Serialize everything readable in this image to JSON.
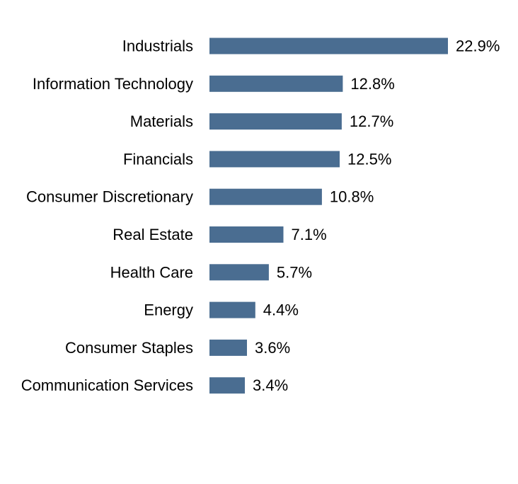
{
  "chart_data": {
    "type": "bar",
    "orientation": "horizontal",
    "categories": [
      "Industrials",
      "Information Technology",
      "Materials",
      "Financials",
      "Consumer Discretionary",
      "Real Estate",
      "Health Care",
      "Energy",
      "Consumer Staples",
      "Communication Services"
    ],
    "values": [
      22.9,
      12.8,
      12.7,
      12.5,
      10.8,
      7.1,
      5.7,
      4.4,
      3.6,
      3.4
    ],
    "value_labels": [
      "22.9%",
      "12.8%",
      "12.7%",
      "12.5%",
      "10.8%",
      "7.1%",
      "5.7%",
      "4.4%",
      "3.6%",
      "3.4%"
    ],
    "title": "",
    "xlabel": "",
    "ylabel": "",
    "xlim": [
      0,
      22.9
    ],
    "grid": false,
    "legend": "none",
    "colors": {
      "bar": "#4a6d91"
    }
  }
}
